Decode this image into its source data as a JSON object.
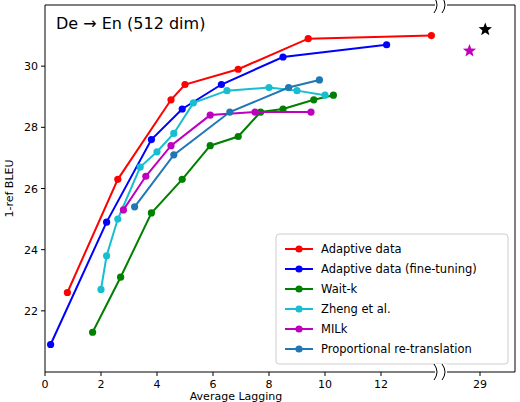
{
  "chart_data": [
    {
      "type": "line",
      "title": "De → En (512 dim)",
      "xlabel": "Average Lagging",
      "ylabel": "1-ref BLEU",
      "xlim": [
        0,
        14
      ],
      "ylim": [
        20,
        32
      ],
      "xticks": [
        0,
        2,
        4,
        6,
        8,
        10,
        12
      ],
      "yticks": [
        22,
        24,
        26,
        28,
        30
      ],
      "grid": false,
      "legend": "lower right",
      "series": [
        {
          "name": "Adaptive data",
          "color": "#ff0000",
          "marker": "circle",
          "line_style": "solid",
          "x": [
            0.8,
            2.6,
            4.5,
            5.0,
            6.9,
            9.4,
            13.8
          ],
          "values": [
            22.6,
            26.3,
            28.9,
            29.4,
            29.9,
            30.9,
            31.0
          ]
        },
        {
          "name": "Adaptive data (fine-tuning)",
          "color": "#0000ff",
          "marker": "circle",
          "line_style": "solid",
          "x": [
            0.2,
            2.2,
            3.8,
            4.9,
            6.3,
            8.5,
            12.2
          ],
          "values": [
            20.9,
            24.9,
            27.6,
            28.6,
            29.4,
            30.3,
            30.7
          ]
        },
        {
          "name": "Wait-k",
          "color": "#008000",
          "marker": "circle",
          "line_style": "solid",
          "x": [
            1.7,
            2.7,
            3.8,
            4.9,
            5.9,
            6.9,
            7.7,
            8.5,
            9.6,
            10.3
          ],
          "values": [
            21.3,
            23.1,
            25.2,
            26.3,
            27.4,
            27.7,
            28.5,
            28.6,
            28.9,
            29.05
          ]
        },
        {
          "name": "Zheng et al.",
          "color": "#17becf",
          "marker": "circle",
          "line_style": "solid",
          "x": [
            2.0,
            2.2,
            2.6,
            3.4,
            4.0,
            4.6,
            5.3,
            6.5,
            8.0,
            9.0,
            10.0
          ],
          "values": [
            22.7,
            23.8,
            25.0,
            26.7,
            27.2,
            27.8,
            28.8,
            29.2,
            29.3,
            29.2,
            29.05
          ]
        },
        {
          "name": "MILk",
          "color": "#bf00bf",
          "marker": "circle",
          "line_style": "solid",
          "x": [
            2.8,
            3.6,
            4.5,
            5.9,
            7.5,
            9.5
          ],
          "values": [
            25.3,
            26.4,
            27.4,
            28.4,
            28.5,
            28.5
          ]
        },
        {
          "name": "Proportional re-translation",
          "color": "#1f77b4",
          "marker": "circle",
          "line_style": "solid",
          "x": [
            3.2,
            4.6,
            6.6,
            8.7,
            9.8
          ],
          "values": [
            25.4,
            27.1,
            28.5,
            29.3,
            29.55
          ]
        }
      ]
    },
    {
      "type": "scatter",
      "xlim": [
        28,
        30
      ],
      "ylim": [
        20,
        32
      ],
      "xticks": [
        29
      ],
      "tick_labels": "x",
      "series": [
        {
          "color": "#bf00bf",
          "marker": "star",
          "line_style": "none",
          "x": [
            28.7
          ],
          "values": [
            30.5
          ]
        },
        {
          "color": "#000000",
          "marker": "star",
          "line_style": "none",
          "x": [
            29.15
          ],
          "values": [
            31.2
          ]
        }
      ]
    }
  ]
}
